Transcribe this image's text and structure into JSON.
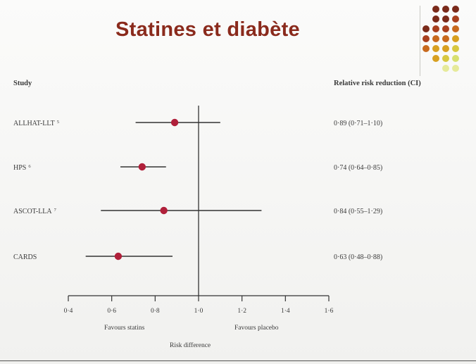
{
  "slide": {
    "title": "Statines et diabète"
  },
  "colors": {
    "title": "#8a2a1c",
    "marker": "#b0203a",
    "line": "#333333",
    "decor_dots": [
      "#7a2a1a",
      "#a8401f",
      "#c86a1e",
      "#d8a020",
      "#d8c840",
      "#d8e070",
      "#e6ea9a"
    ]
  },
  "chart_data": {
    "type": "forest",
    "columns": {
      "study_header": "Study",
      "result_header": "Relative risk reduction (CI)"
    },
    "rows": [
      {
        "study": "ALLHAT-LLT",
        "ref": "5",
        "estimate": 0.89,
        "ci_low": 0.71,
        "ci_high": 1.1,
        "label": "0·89 (0·71–1·10)"
      },
      {
        "study": "HPS",
        "ref": "6",
        "estimate": 0.74,
        "ci_low": 0.64,
        "ci_high": 0.85,
        "label": "0·74 (0·64–0·85)"
      },
      {
        "study": "ASCOT-LLA",
        "ref": "7",
        "estimate": 0.84,
        "ci_low": 0.55,
        "ci_high": 1.29,
        "label": "0·84 (0·55–1·29)"
      },
      {
        "study": "CARDS",
        "ref": "",
        "estimate": 0.63,
        "ci_low": 0.48,
        "ci_high": 0.88,
        "label": "0·63 (0·48–0·88)"
      }
    ],
    "x_ticks": [
      0.4,
      0.6,
      0.8,
      1.0,
      1.2,
      1.4,
      1.6
    ],
    "x_tick_labels": [
      "0·4",
      "0·6",
      "0·8",
      "1·0",
      "1·2",
      "1·4",
      "1·6"
    ],
    "xlim": [
      0.4,
      1.6
    ],
    "reference_line": 1.0,
    "favours_left": "Favours statins",
    "favours_right": "Favours placebo",
    "xlabel": "Risk difference"
  }
}
